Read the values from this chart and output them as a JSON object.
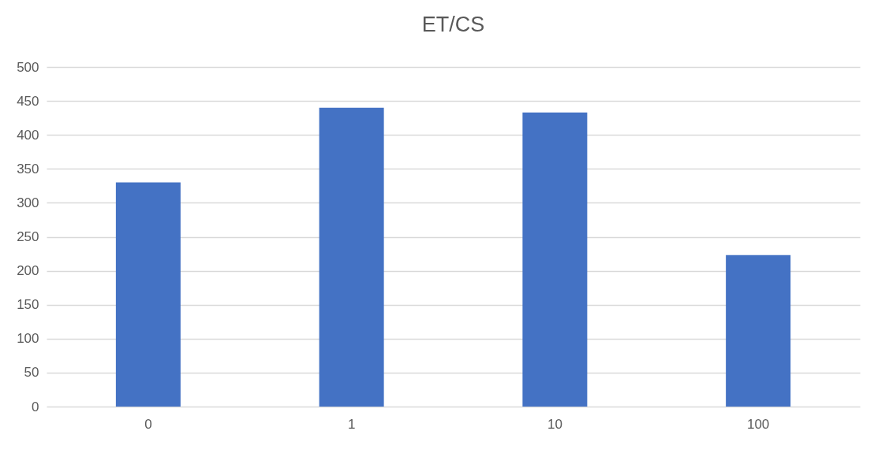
{
  "chart_data": {
    "type": "bar",
    "title": "ET/CS",
    "categories": [
      "0",
      "1",
      "10",
      "100"
    ],
    "values": [
      330,
      440,
      433,
      223
    ],
    "color": "#4472c4",
    "ylim": [
      0,
      500
    ],
    "yticks": [
      0,
      50,
      100,
      150,
      200,
      250,
      300,
      350,
      400,
      450,
      500
    ],
    "grid": "y"
  }
}
